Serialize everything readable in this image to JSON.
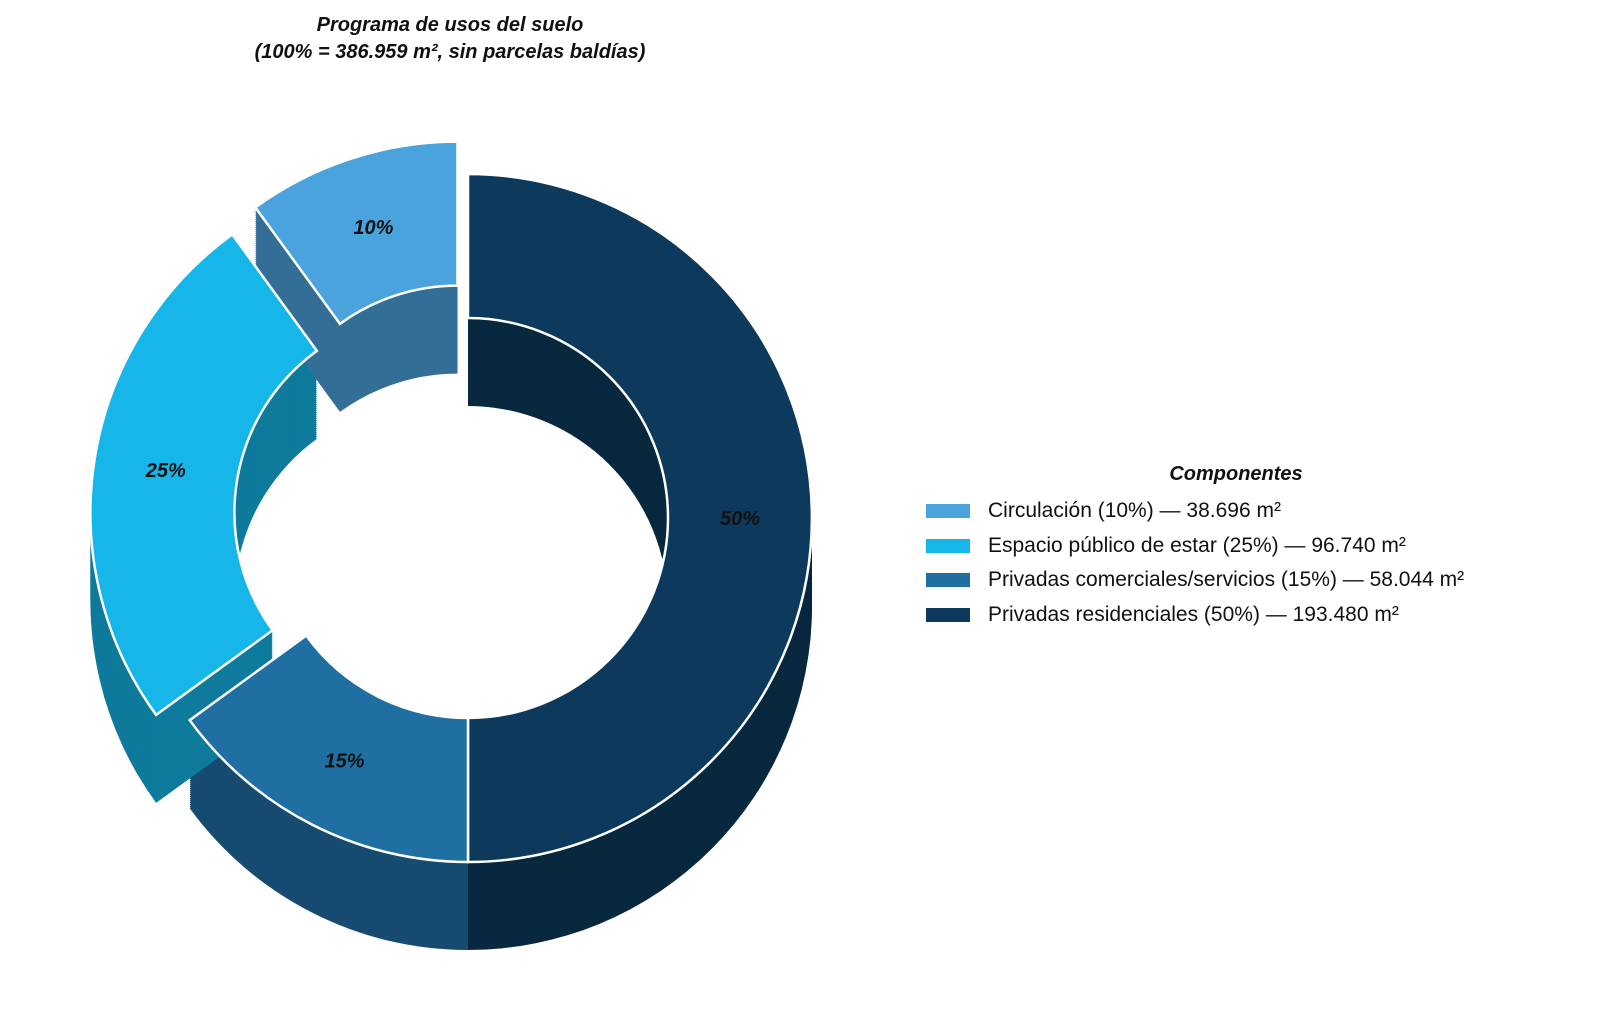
{
  "chart_data": {
    "type": "pie",
    "variant": "3d-donut-exploded",
    "title_line1": "Programa de usos del suelo",
    "title_line2": "(100% = 386.959 m², sin parcelas baldías)",
    "legend_title": "Componentes",
    "legend_placement": "right",
    "slices": [
      {
        "name": "Privadas residenciales",
        "value": 50,
        "area_m2": 193480,
        "label": "50%",
        "legend": "Privadas residenciales (50%) — 193.480 m²",
        "color": "#0d3a5c",
        "side": "#08283f",
        "exploded": false
      },
      {
        "name": "Privadas comerciales/servicios",
        "value": 15,
        "area_m2": 58044,
        "label": "15%",
        "legend": "Privadas comerciales/servicios (15%) — 58.044 m²",
        "color": "#1f6fa3",
        "side": "#174b70",
        "exploded": false
      },
      {
        "name": "Espacio público de estar",
        "value": 25,
        "area_m2": 96740,
        "label": "25%",
        "legend": "Espacio público de estar (25%) — 96.740 m²",
        "color": "#16b6e8",
        "side": "#0e7a9c",
        "exploded": true
      },
      {
        "name": "Circulación",
        "value": 10,
        "area_m2": 38696,
        "label": "10%",
        "legend": "Circulación (10%) — 38.696 m²",
        "color": "#4ba3de",
        "side": "#336e96",
        "exploded": true
      }
    ],
    "legend_order": [
      3,
      2,
      1,
      0
    ]
  }
}
